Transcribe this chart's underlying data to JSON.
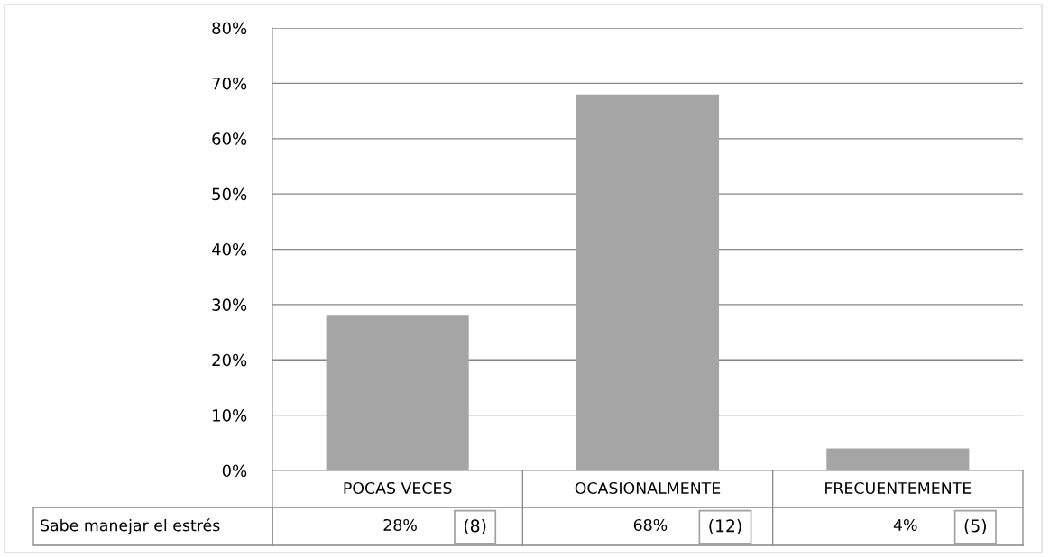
{
  "chart_data": {
    "type": "bar",
    "categories": [
      "POCAS VECES",
      "OCASIONALMENTE",
      "FRECUENTEMENTE"
    ],
    "series": [
      {
        "name": "Sabe manejar el estrés",
        "color": "#a5a5a5",
        "values": [
          28,
          68,
          4
        ],
        "value_labels": [
          "28%",
          "68%",
          "4%"
        ]
      }
    ],
    "ylim": [
      0,
      80
    ],
    "yticks": [
      {
        "value": 0,
        "label": "0%"
      },
      {
        "value": 10,
        "label": "10%"
      },
      {
        "value": 20,
        "label": "20%"
      },
      {
        "value": 30,
        "label": "30%"
      },
      {
        "value": 40,
        "label": "40%"
      },
      {
        "value": 50,
        "label": "50%"
      },
      {
        "value": 60,
        "label": "60%"
      },
      {
        "value": 70,
        "label": "70%"
      },
      {
        "value": 80,
        "label": "80%"
      }
    ],
    "grid": "y",
    "annotations": [
      "(8)",
      "(12)",
      "(5)"
    ]
  }
}
